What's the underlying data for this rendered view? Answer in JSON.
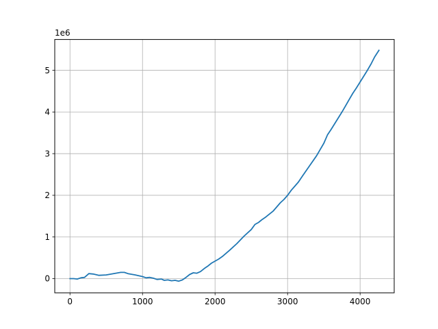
{
  "chart_data": {
    "type": "line",
    "title": "",
    "xlabel": "",
    "ylabel": "",
    "y_offset_label": "1e6",
    "xlim": [
      -210,
      4470
    ],
    "ylim": [
      -0.34,
      5.74
    ],
    "x_ticks": [
      0,
      1000,
      2000,
      3000,
      4000
    ],
    "x_tick_labels": [
      "0",
      "1000",
      "2000",
      "3000",
      "4000"
    ],
    "y_ticks": [
      0,
      1,
      2,
      3,
      4,
      5
    ],
    "y_tick_labels": [
      "0",
      "1",
      "2",
      "3",
      "4",
      "5"
    ],
    "grid": true,
    "line_color": "#1f77b4",
    "grid_color": "#b0b0b0",
    "series": [
      {
        "x": [
          0,
          50,
          100,
          150,
          200,
          260,
          320,
          400,
          500,
          600,
          700,
          750,
          800,
          900,
          1000,
          1050,
          1100,
          1150,
          1200,
          1260,
          1300,
          1350,
          1400,
          1450,
          1500,
          1550,
          1600,
          1650,
          1700,
          1750,
          1800,
          1850,
          1900,
          1950,
          2000,
          2050,
          2100,
          2200,
          2300,
          2400,
          2500,
          2550,
          2600,
          2650,
          2700,
          2750,
          2800,
          2850,
          2900,
          2950,
          3000,
          3050,
          3100,
          3150,
          3200,
          3300,
          3400,
          3450,
          3500,
          3550,
          3600,
          3650,
          3700,
          3750,
          3800,
          3850,
          3900,
          3950,
          4000,
          4050,
          4100,
          4150,
          4200,
          4260
        ],
        "y": [
          0.0,
          0.0,
          -0.01,
          0.02,
          0.03,
          0.12,
          0.11,
          0.08,
          0.09,
          0.12,
          0.15,
          0.15,
          0.12,
          0.09,
          0.05,
          0.02,
          0.03,
          0.01,
          -0.02,
          -0.01,
          -0.04,
          -0.03,
          -0.05,
          -0.04,
          -0.06,
          -0.03,
          0.03,
          0.1,
          0.14,
          0.13,
          0.17,
          0.24,
          0.3,
          0.37,
          0.42,
          0.47,
          0.53,
          0.68,
          0.84,
          1.02,
          1.18,
          1.3,
          1.35,
          1.42,
          1.48,
          1.55,
          1.62,
          1.72,
          1.82,
          1.9,
          2.0,
          2.12,
          2.22,
          2.32,
          2.45,
          2.7,
          2.95,
          3.1,
          3.25,
          3.45,
          3.58,
          3.72,
          3.86,
          4.0,
          4.15,
          4.3,
          4.45,
          4.58,
          4.72,
          4.86,
          5.0,
          5.15,
          5.32,
          5.48
        ]
      }
    ]
  }
}
